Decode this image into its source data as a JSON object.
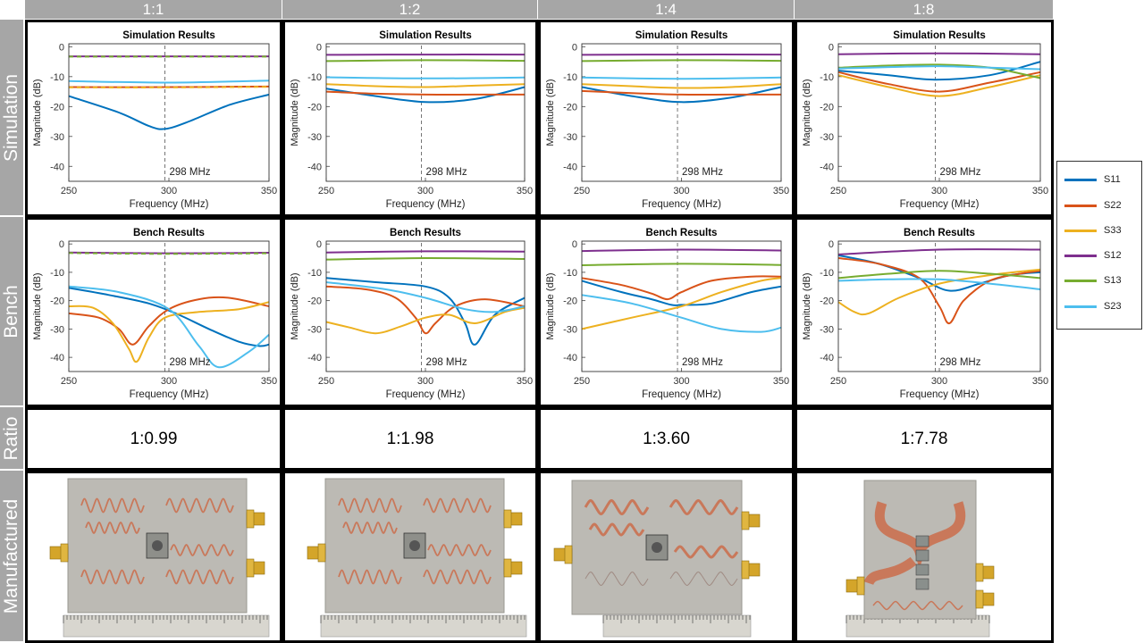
{
  "columns": [
    "1:1",
    "1:2",
    "1:4",
    "1:8"
  ],
  "rows": [
    "Simulation",
    "Bench",
    "Ratio",
    "Manufactured"
  ],
  "ratios": [
    "1:0.99",
    "1:1.98",
    "1:3.60",
    "1:7.78"
  ],
  "legend": [
    {
      "name": "S11",
      "color": "#0072BD"
    },
    {
      "name": "S22",
      "color": "#D95319"
    },
    {
      "name": "S33",
      "color": "#EDB120"
    },
    {
      "name": "S12",
      "color": "#7E2F8E"
    },
    {
      "name": "S13",
      "color": "#77AC30"
    },
    {
      "name": "S23",
      "color": "#4DBEEE"
    }
  ],
  "chart_data": [
    {
      "type": "line",
      "title": "Simulation Results",
      "xlabel": "Frequency (MHz)",
      "ylabel": "Magnitude (dB)",
      "xlim": [
        250,
        350
      ],
      "ylim": [
        -45,
        1
      ],
      "xticks": [
        "250",
        "300",
        "350"
      ],
      "yticks": [
        "0",
        "-10",
        "-20",
        "-30",
        "-40"
      ],
      "marker": {
        "x": 298,
        "label": "298 MHz"
      },
      "series": [
        {
          "name": "S11",
          "x": [
            250,
            275,
            290,
            298,
            310,
            330,
            350
          ],
          "values": [
            -16.5,
            -22,
            -26.5,
            -27.5,
            -25,
            -19.5,
            -16
          ]
        },
        {
          "name": "S22",
          "x": [
            250,
            300,
            350
          ],
          "values": [
            -13.5,
            -13.5,
            -13.3
          ]
        },
        {
          "name": "S33",
          "x": [
            250,
            300,
            350
          ],
          "values": [
            -13.6,
            -13.6,
            -13.4
          ]
        },
        {
          "name": "S12",
          "x": [
            250,
            300,
            350
          ],
          "values": [
            -3.2,
            -3.2,
            -3.2
          ]
        },
        {
          "name": "S13",
          "x": [
            250,
            300,
            350
          ],
          "values": [
            -3.3,
            -3.3,
            -3.3
          ]
        },
        {
          "name": "S23",
          "x": [
            250,
            300,
            350
          ],
          "values": [
            -11.5,
            -12,
            -11.3
          ]
        }
      ]
    },
    {
      "type": "line",
      "title": "Simulation Results",
      "xlabel": "Frequency (MHz)",
      "ylabel": "Magnitude (dB)",
      "xlim": [
        250,
        350
      ],
      "ylim": [
        -45,
        1
      ],
      "xticks": [
        "250",
        "300",
        "350"
      ],
      "yticks": [
        "0",
        "-10",
        "-20",
        "-30",
        "-40"
      ],
      "marker": {
        "x": 298,
        "label": "298 MHz"
      },
      "series": [
        {
          "name": "S11",
          "x": [
            250,
            275,
            300,
            325,
            350
          ],
          "values": [
            -14,
            -16.5,
            -18.5,
            -17.5,
            -13.5
          ]
        },
        {
          "name": "S22",
          "x": [
            250,
            275,
            300,
            325,
            350
          ],
          "values": [
            -15,
            -15.7,
            -16,
            -16,
            -16
          ]
        },
        {
          "name": "S33",
          "x": [
            250,
            275,
            300,
            325,
            350
          ],
          "values": [
            -12.5,
            -13.2,
            -13.5,
            -13,
            -12.5
          ]
        },
        {
          "name": "S12",
          "x": [
            250,
            300,
            350
          ],
          "values": [
            -2.7,
            -2.6,
            -2.6
          ]
        },
        {
          "name": "S13",
          "x": [
            250,
            300,
            350
          ],
          "values": [
            -4.8,
            -4.5,
            -4.7
          ]
        },
        {
          "name": "S23",
          "x": [
            250,
            300,
            350
          ],
          "values": [
            -10.2,
            -10.6,
            -10.3
          ]
        }
      ]
    },
    {
      "type": "line",
      "title": "Simulation Results",
      "xlabel": "Frequency (MHz)",
      "ylabel": "Magnitude (dB)",
      "xlim": [
        250,
        350
      ],
      "ylim": [
        -45,
        1
      ],
      "xticks": [
        "250",
        "300",
        "350"
      ],
      "yticks": [
        "0",
        "-10",
        "-20",
        "-30",
        "-40"
      ],
      "marker": {
        "x": 298,
        "label": "298 MHz"
      },
      "series": [
        {
          "name": "S11",
          "x": [
            250,
            275,
            300,
            325,
            350
          ],
          "values": [
            -13.5,
            -16.5,
            -18.5,
            -17,
            -13.5
          ]
        },
        {
          "name": "S22",
          "x": [
            250,
            275,
            300,
            325,
            350
          ],
          "values": [
            -14.8,
            -15.5,
            -16,
            -16,
            -16
          ]
        },
        {
          "name": "S33",
          "x": [
            250,
            275,
            300,
            325,
            350
          ],
          "values": [
            -12.5,
            -13.2,
            -13.8,
            -13.5,
            -12.5
          ]
        },
        {
          "name": "S12",
          "x": [
            250,
            300,
            350
          ],
          "values": [
            -2.7,
            -2.6,
            -2.6
          ]
        },
        {
          "name": "S13",
          "x": [
            250,
            300,
            350
          ],
          "values": [
            -4.8,
            -4.5,
            -4.7
          ]
        },
        {
          "name": "S23",
          "x": [
            250,
            300,
            350
          ],
          "values": [
            -10.3,
            -10.7,
            -10.3
          ]
        }
      ]
    },
    {
      "type": "line",
      "title": "Simulation Results",
      "xlabel": "Frequency (MHz)",
      "ylabel": "Magnitude (dB)",
      "xlim": [
        250,
        350
      ],
      "ylim": [
        -45,
        1
      ],
      "xticks": [
        "250",
        "300",
        "350"
      ],
      "yticks": [
        "0",
        "-10",
        "-20",
        "-30",
        "-40"
      ],
      "marker": {
        "x": 298,
        "label": "298 MHz"
      },
      "series": [
        {
          "name": "S11",
          "x": [
            250,
            275,
            298,
            325,
            350
          ],
          "values": [
            -8,
            -9.5,
            -11,
            -9.5,
            -5
          ]
        },
        {
          "name": "S22",
          "x": [
            250,
            275,
            300,
            325,
            350
          ],
          "values": [
            -8.5,
            -12.5,
            -15,
            -12,
            -8.5
          ]
        },
        {
          "name": "S33",
          "x": [
            250,
            275,
            300,
            325,
            350
          ],
          "values": [
            -9.5,
            -13.5,
            -16.5,
            -13.5,
            -9.5
          ]
        },
        {
          "name": "S12",
          "x": [
            250,
            300,
            350
          ],
          "values": [
            -2.5,
            -2.2,
            -2.5
          ]
        },
        {
          "name": "S13",
          "x": [
            250,
            275,
            300,
            325,
            350
          ],
          "values": [
            -7,
            -6.3,
            -6,
            -7,
            -10.5
          ]
        },
        {
          "name": "S23",
          "x": [
            250,
            275,
            300,
            325,
            350
          ],
          "values": [
            -7.3,
            -6.8,
            -6.5,
            -7,
            -7.5
          ]
        }
      ]
    },
    {
      "type": "line",
      "title": "Bench Results",
      "xlabel": "Frequency (MHz)",
      "ylabel": "Magnitude (dB)",
      "xlim": [
        250,
        350
      ],
      "ylim": [
        -45,
        1
      ],
      "xticks": [
        "250",
        "300",
        "350"
      ],
      "yticks": [
        "0",
        "-10",
        "-20",
        "-30",
        "-40"
      ],
      "marker": {
        "x": 298,
        "label": "298 MHz"
      },
      "series": [
        {
          "name": "S11",
          "x": [
            250,
            270,
            290,
            305,
            320,
            335,
            345,
            350
          ],
          "values": [
            -15.5,
            -18,
            -21,
            -25,
            -30,
            -34.5,
            -36,
            -35.5
          ]
        },
        {
          "name": "S22",
          "x": [
            250,
            265,
            275,
            282,
            290,
            300,
            315,
            330,
            350
          ],
          "values": [
            -24.5,
            -26,
            -30,
            -35.5,
            -29,
            -23,
            -19.5,
            -19,
            -22
          ]
        },
        {
          "name": "S33",
          "x": [
            250,
            262,
            272,
            280,
            284,
            290,
            298,
            315,
            335,
            350
          ],
          "values": [
            -22,
            -22.5,
            -28,
            -37,
            -41.5,
            -33,
            -26,
            -24,
            -23,
            -20.5
          ]
        },
        {
          "name": "S12",
          "x": [
            250,
            300,
            350
          ],
          "values": [
            -3,
            -3.3,
            -3.1
          ]
        },
        {
          "name": "S13",
          "x": [
            250,
            300,
            350
          ],
          "values": [
            -3.2,
            -3.5,
            -3.3
          ]
        },
        {
          "name": "S23",
          "x": [
            250,
            275,
            300,
            315,
            325,
            340,
            350
          ],
          "values": [
            -15,
            -17,
            -23,
            -36,
            -43.5,
            -38,
            -32
          ]
        }
      ]
    },
    {
      "type": "line",
      "title": "Bench Results",
      "xlabel": "Frequency (MHz)",
      "ylabel": "Magnitude (dB)",
      "xlim": [
        250,
        350
      ],
      "ylim": [
        -45,
        1
      ],
      "xticks": [
        "250",
        "300",
        "350"
      ],
      "yticks": [
        "0",
        "-10",
        "-20",
        "-30",
        "-40"
      ],
      "marker": {
        "x": 298,
        "label": "298 MHz"
      },
      "series": [
        {
          "name": "S11",
          "x": [
            250,
            275,
            300,
            312,
            320,
            325,
            335,
            350
          ],
          "values": [
            -12,
            -13.5,
            -15,
            -19,
            -28,
            -35.5,
            -25,
            -19
          ]
        },
        {
          "name": "S22",
          "x": [
            250,
            270,
            285,
            295,
            300,
            305,
            315,
            330,
            350
          ],
          "values": [
            -15,
            -16,
            -19,
            -26,
            -31.5,
            -28,
            -22,
            -19.5,
            -22
          ]
        },
        {
          "name": "S33",
          "x": [
            250,
            262,
            275,
            288,
            300,
            312,
            325,
            340,
            350
          ],
          "values": [
            -27.5,
            -29.5,
            -31.5,
            -29,
            -26,
            -25,
            -28,
            -24,
            -22.5
          ]
        },
        {
          "name": "S12",
          "x": [
            250,
            300,
            350
          ],
          "values": [
            -3,
            -2.6,
            -2.7
          ]
        },
        {
          "name": "S13",
          "x": [
            250,
            300,
            350
          ],
          "values": [
            -5.5,
            -5,
            -5.3
          ]
        },
        {
          "name": "S23",
          "x": [
            250,
            280,
            300,
            320,
            335,
            350
          ],
          "values": [
            -13.5,
            -16,
            -19,
            -23,
            -24,
            -22
          ]
        }
      ]
    },
    {
      "type": "line",
      "title": "Bench Results",
      "xlabel": "Frequency (MHz)",
      "ylabel": "Magnitude (dB)",
      "xlim": [
        250,
        350
      ],
      "ylim": [
        -45,
        1
      ],
      "xticks": [
        "250",
        "300",
        "350"
      ],
      "yticks": [
        "0",
        "-10",
        "-20",
        "-30",
        "-40"
      ],
      "marker": {
        "x": 298,
        "label": "298 MHz"
      },
      "series": [
        {
          "name": "S11",
          "x": [
            250,
            270,
            285,
            295,
            300,
            315,
            335,
            350
          ],
          "values": [
            -13,
            -17,
            -19.5,
            -21.5,
            -21.5,
            -21,
            -17,
            -15
          ]
        },
        {
          "name": "S22",
          "x": [
            250,
            270,
            285,
            293,
            300,
            315,
            335,
            350
          ],
          "values": [
            -12,
            -14.5,
            -17.5,
            -19.5,
            -17,
            -13,
            -11.5,
            -11.5
          ]
        },
        {
          "name": "S33",
          "x": [
            250,
            275,
            300,
            320,
            340,
            350
          ],
          "values": [
            -30,
            -26,
            -22,
            -17,
            -13,
            -12
          ]
        },
        {
          "name": "S12",
          "x": [
            250,
            300,
            350
          ],
          "values": [
            -2.5,
            -2,
            -2.3
          ]
        },
        {
          "name": "S13",
          "x": [
            250,
            300,
            350
          ],
          "values": [
            -7.5,
            -7,
            -7.4
          ]
        },
        {
          "name": "S23",
          "x": [
            250,
            275,
            300,
            320,
            340,
            350
          ],
          "values": [
            -18,
            -21,
            -26,
            -30,
            -31,
            -29.5
          ]
        }
      ]
    },
    {
      "type": "line",
      "title": "Bench Results",
      "xlabel": "Frequency (MHz)",
      "ylabel": "Magnitude (dB)",
      "xlim": [
        250,
        350
      ],
      "ylim": [
        -45,
        1
      ],
      "xticks": [
        "250",
        "300",
        "350"
      ],
      "yticks": [
        "0",
        "-10",
        "-20",
        "-30",
        "-40"
      ],
      "marker": {
        "x": 298,
        "label": "298 MHz"
      },
      "series": [
        {
          "name": "S11",
          "x": [
            250,
            270,
            290,
            305,
            320,
            335,
            350
          ],
          "values": [
            -4,
            -7,
            -12,
            -16.5,
            -14,
            -11,
            -10
          ]
        },
        {
          "name": "S22",
          "x": [
            250,
            270,
            290,
            300,
            305,
            312,
            325,
            340,
            350
          ],
          "values": [
            -5,
            -7,
            -12,
            -22,
            -28,
            -20,
            -13,
            -10.5,
            -9.5
          ]
        },
        {
          "name": "S33",
          "x": [
            250,
            258,
            265,
            280,
            300,
            325,
            350
          ],
          "values": [
            -20.5,
            -24,
            -24.5,
            -19,
            -14,
            -11,
            -9
          ]
        },
        {
          "name": "S12",
          "x": [
            250,
            300,
            350
          ],
          "values": [
            -3.7,
            -2,
            -2
          ]
        },
        {
          "name": "S13",
          "x": [
            250,
            275,
            300,
            325,
            350
          ],
          "values": [
            -12,
            -10.5,
            -9.5,
            -10.5,
            -12
          ]
        },
        {
          "name": "S23",
          "x": [
            250,
            275,
            300,
            325,
            350
          ],
          "values": [
            -13,
            -12.5,
            -12.5,
            -14,
            -16
          ]
        }
      ]
    }
  ]
}
